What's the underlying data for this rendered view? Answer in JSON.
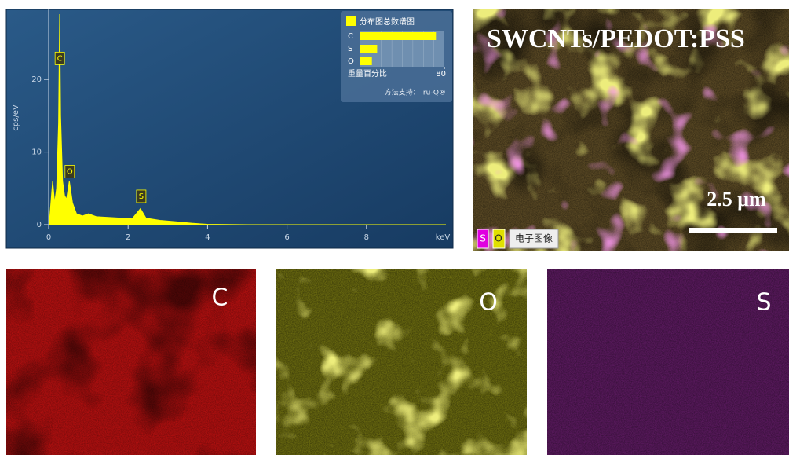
{
  "chart_data": [
    {
      "type": "area",
      "xlabel": "keV",
      "ylabel": "cps/eV",
      "color": "#ffff00",
      "x": [
        0.02,
        0.1,
        0.15,
        0.2,
        0.25,
        0.277,
        0.3,
        0.35,
        0.4,
        0.45,
        0.52,
        0.6,
        0.7,
        0.85,
        1.0,
        1.2,
        1.5,
        1.8,
        2.1,
        2.31,
        2.45,
        2.8,
        3.2,
        3.6,
        4.0,
        5.0,
        10.0
      ],
      "values": [
        0.5,
        6,
        3,
        5,
        14,
        29,
        15,
        6,
        4,
        3.5,
        6,
        3,
        1.5,
        1.2,
        1.5,
        1.1,
        1.0,
        0.9,
        0.8,
        2.2,
        0.9,
        0.6,
        0.4,
        0.2,
        0.05,
        0,
        0
      ],
      "xlim": [
        0,
        10
      ],
      "ylim": [
        0,
        29
      ],
      "xticks": [
        0,
        2,
        4,
        6,
        8
      ],
      "yticks": [
        0,
        10,
        20
      ],
      "annotations": [
        {
          "text": "C",
          "x": 0.28,
          "y": 22.9
        },
        {
          "text": "O",
          "x": 0.53,
          "y": 7.3
        },
        {
          "text": "S",
          "x": 2.33,
          "y": 3.9
        }
      ]
    },
    {
      "type": "bar",
      "orientation": "horizontal",
      "title": "分布图总数谱图",
      "xlabel": "重量百分比",
      "categories": [
        "C",
        "S",
        "O"
      ],
      "values": [
        72,
        16,
        11
      ],
      "color": "#ffff00",
      "xlim": [
        0,
        80
      ],
      "xticks": [
        80
      ],
      "footnote": "方法支持：Tru-Q®"
    }
  ],
  "images": {
    "title": "SWCNTs/PEDOT:PSS",
    "scale_bar": "2.5 μm",
    "legend": [
      "S",
      "O",
      "电子图像"
    ],
    "maps": [
      "C",
      "O",
      "S"
    ]
  }
}
